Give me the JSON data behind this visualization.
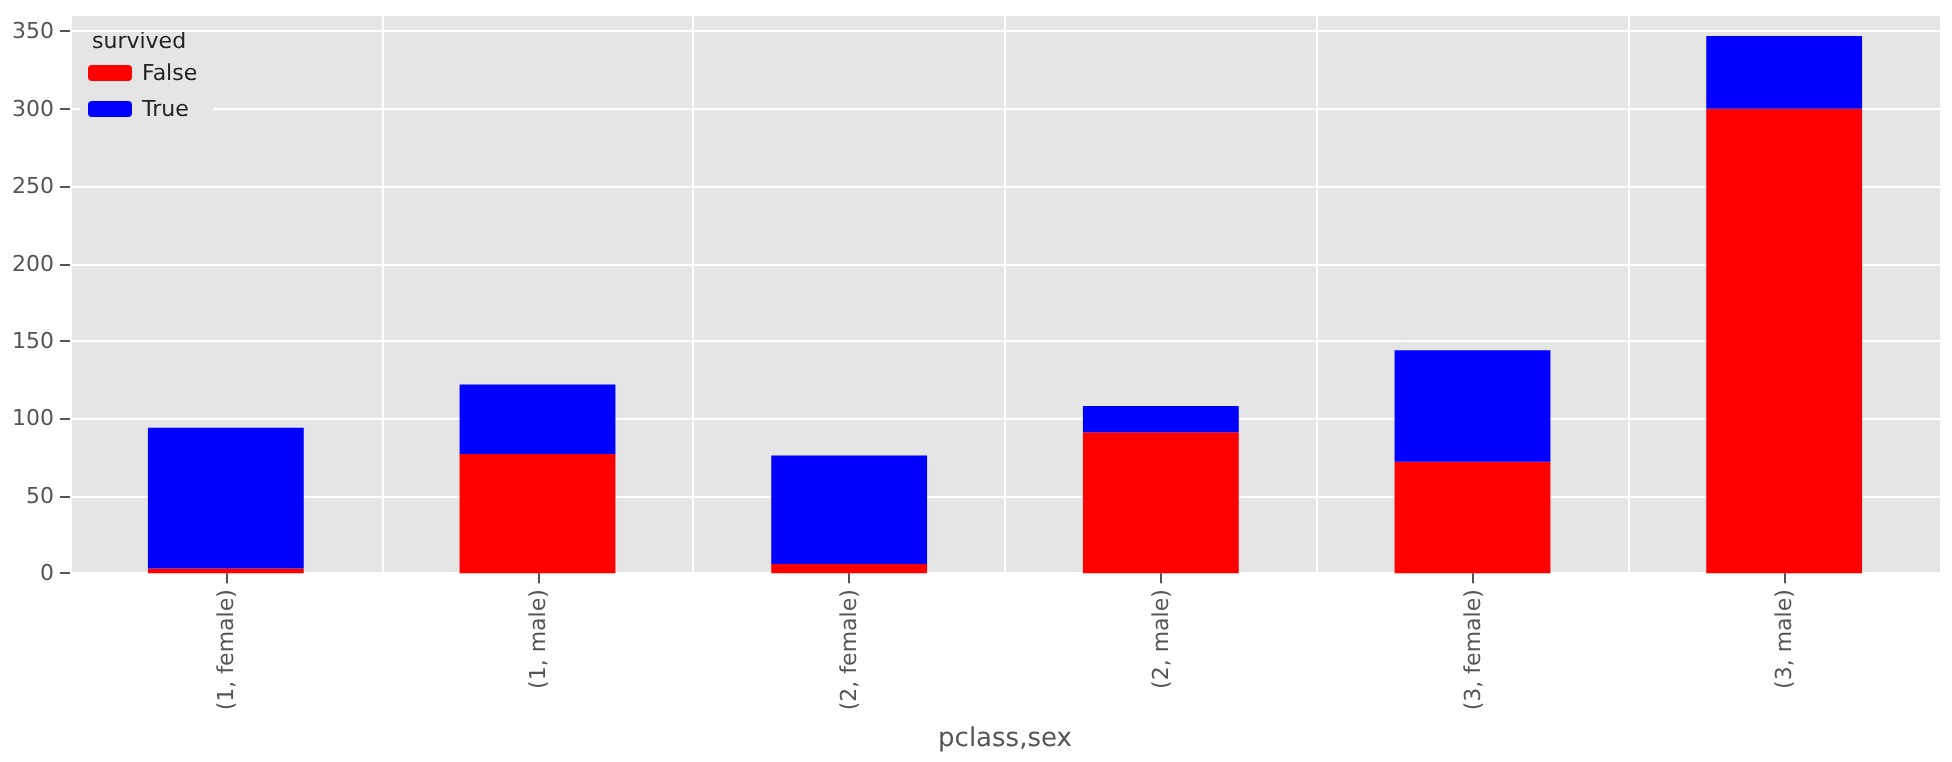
{
  "chart_data": {
    "type": "bar",
    "stacked": true,
    "xlabel": "pclass,sex",
    "legend_title": "survived",
    "legend": "top left",
    "grid": true,
    "categories": [
      "(1, female)",
      "(1, male)",
      "(2, female)",
      "(2, male)",
      "(3, female)",
      "(3, male)"
    ],
    "series": [
      {
        "name": "False",
        "color": "#ff0000",
        "values": [
          3,
          77,
          6,
          91,
          72,
          300
        ]
      },
      {
        "name": "True",
        "color": "#0000ff",
        "values": [
          91,
          45,
          70,
          17,
          72,
          47
        ]
      }
    ],
    "ylim": [
      0,
      360
    ],
    "yticks": [
      0,
      50,
      100,
      150,
      200,
      250,
      300,
      350
    ]
  }
}
